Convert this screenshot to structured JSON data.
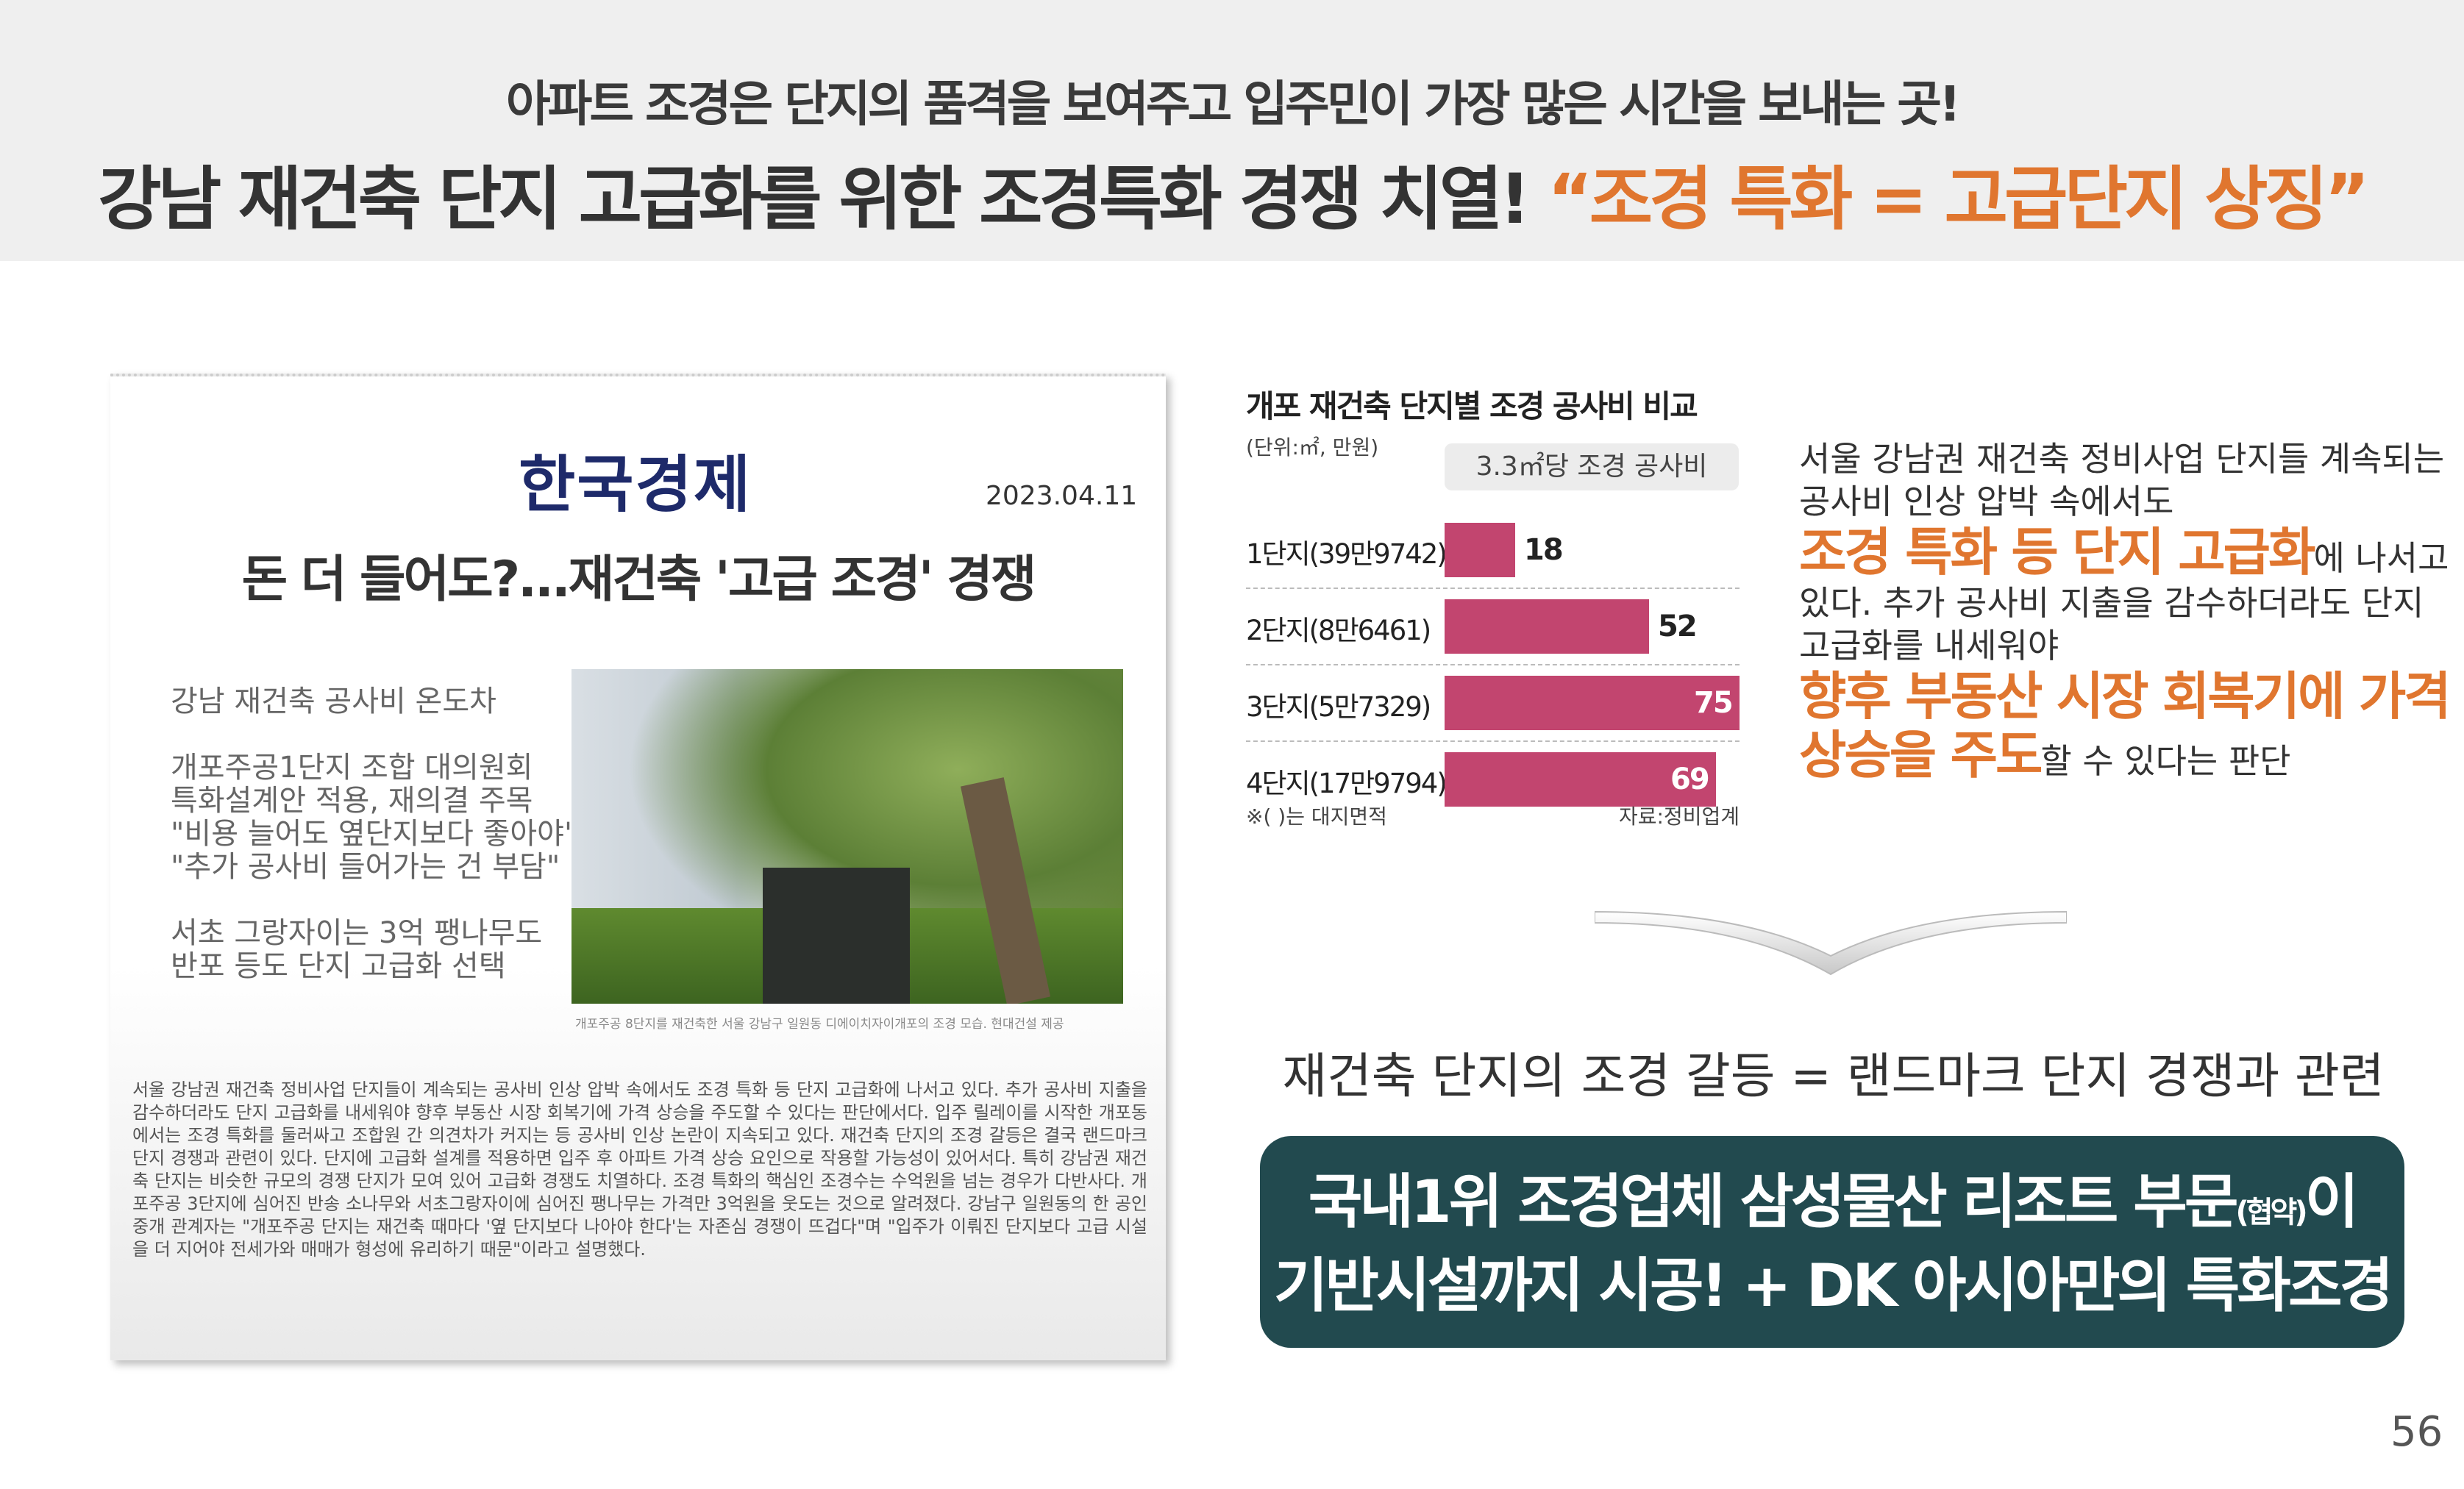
{
  "header": {
    "line1": "아파트 조경은 단지의 품격을 보여주고 입주민이 가장 많은 시간을 보내는 곳!",
    "line2_main": "강남 재건축 단지 고급화를 위한 조경특화 경쟁 치열! ",
    "line2_highlight": "“조경 특화 = 고급단지 상징”",
    "accent": "#e0762f"
  },
  "article": {
    "logo": "한국경제",
    "date": "2023.04.11",
    "headline": "돈 더 들어도?...재건축 '고급 조경' 경쟁",
    "subheads": [
      "강남 재건축 공사비 온도차",
      "개포주공1단지 조합 대의원회\n특화설계안 적용, 재의결 주목\n\"비용 늘어도 옆단지보다 좋아야\"\n\"추가 공사비 들어가는 건 부담\"",
      "서초 그랑자이는 3억 팽나무도\n반포 등도 단지 고급화 선택"
    ],
    "photo_caption": "개포주공 8단지를 재건축한 서울 강남구 일원동 디에이치자이개포의 조경 모습. 현대건설 제공",
    "body": "서울 강남권 재건축 정비사업 단지들이 계속되는 공사비 인상 압박 속에서도 조경 특화 등 단지 고급화에 나서고 있다. 추가 공사비 지출을 감수하더라도 단지 고급화를 내세워야 향후 부동산 시장 회복기에 가격 상승을 주도할 수 있다는 판단에서다. 입주 릴레이를 시작한 개포동에서는 조경 특화를 둘러싸고 조합원 간 의견차가 커지는 등 공사비 인상 논란이 지속되고 있다. 재건축 단지의 조경 갈등은 결국 랜드마크 단지 경쟁과 관련이 있다. 단지에 고급화 설계를 적용하면 입주 후 아파트 가격 상승 요인으로 작용할 가능성이 있어서다. 특히 강남권 재건축 단지는 비슷한 규모의 경쟁 단지가 모여 있어 고급화 경쟁도 치열하다. 조경 특화의 핵심인 조경수는 수억원을 넘는 경우가 다반사다. 개포주공 3단지에 심어진 반송 소나무와 서초그랑자이에 심어진 팽나무는 가격만 3억원을 웃도는 것으로 알려졌다. 강남구 일원동의 한 공인중개 관계자는 \"개포주공 단지는 재건축 때마다 '옆 단지보다 나아야 한다'는 자존심 경쟁이 뜨겁다\"며 \"입주가 이뤄진 단지보다 고급 시설을 더 지어야 전세가와 매매가 형성에 유리하기 때문\"이라고 설명했다."
  },
  "chart_data": {
    "type": "bar",
    "orientation": "horizontal",
    "title": "개포 재건축 단지별 조경 공사비 비교",
    "unit": "(단위:㎡, 만원)",
    "legend": "3.3㎡당 조경 공사비",
    "categories": [
      "1단지(39만9742)",
      "2단지(8만6461)",
      "3단지(5만7329)",
      "4단지(17만9794)"
    ],
    "values": [
      18,
      52,
      75,
      69
    ],
    "labels": [
      "18",
      "52",
      "75",
      "69"
    ],
    "bar_color": "#c2456f",
    "note": "※(  )는 대지면적",
    "source": "자료:정비업계"
  },
  "right": {
    "p1": "서울 강남권 재건축 정비사업 단지들 계속되는 공사비 인상 압박 속에서도",
    "h1": "조경 특화 등 단지 고급화",
    "p2": "에 나서고 있다. 추가 공사비 지출을 감수하더라도 단지 고급화를 내세워야",
    "h2": "향후 부동산 시장 회복기에 가격 상승을 주도",
    "p3": "할 수 있다는 판단"
  },
  "mid": "재건축 단지의 조경 갈등 = 랜드마크 단지 경쟁과 관련",
  "banner": {
    "l1a": "국내1위 조경업체 삼성물산 리조트 부문",
    "l1small": "(협약)",
    "l1b": "이",
    "l2": "기반시설까지 시공! + DK 아시아만의 특화조경",
    "color": "#224a4f"
  },
  "page_number": "56"
}
